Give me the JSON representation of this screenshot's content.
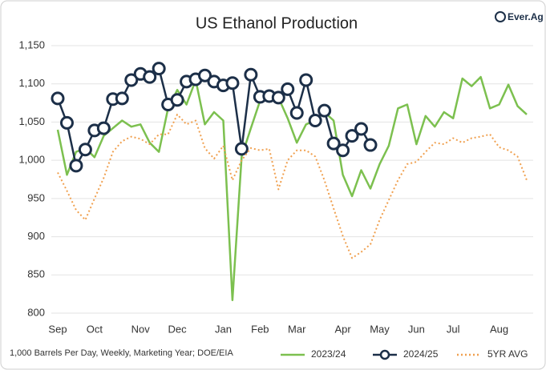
{
  "chart_data": {
    "type": "line",
    "title": "US Ethanol Production",
    "logo": "Ever.Ag",
    "note": "1,000 Barrels Per Day, Weekly, Marketing Year; DOE/EIA",
    "categories": [
      "Sep",
      null,
      null,
      null,
      "Oct",
      null,
      null,
      null,
      null,
      "Nov",
      null,
      null,
      null,
      "Dec",
      null,
      null,
      null,
      null,
      "Jan",
      null,
      null,
      null,
      "Feb",
      null,
      null,
      null,
      "Mar",
      null,
      null,
      null,
      null,
      "Apr",
      null,
      null,
      null,
      "May",
      null,
      null,
      null,
      "Jun",
      null,
      null,
      null,
      "Jul",
      null,
      null,
      null,
      null,
      "Aug",
      null,
      null,
      null
    ],
    "ylim": [
      800,
      1150
    ],
    "yticks": [
      800,
      850,
      900,
      950,
      {
        "value": 1000,
        "label": "1,000"
      },
      {
        "value": 1050,
        "label": "1,050"
      },
      {
        "value": 1100,
        "label": "1,100"
      },
      {
        "value": 1150,
        "label": "1,150"
      }
    ],
    "grid": true,
    "legend": "bottom",
    "series": [
      {
        "name": "2023/24",
        "color": "#7cc04f",
        "style": "solid",
        "values": [
          1040,
          981,
          1011,
          1016,
          1004,
          1032,
          1042,
          1052,
          1044,
          1047,
          1023,
          1011,
          1068,
          1092,
          1073,
          1105,
          1047,
          1063,
          1052,
          817,
          1005,
          1042,
          1078,
          1086,
          1082,
          1055,
          1023,
          1047,
          1052,
          1063,
          1052,
          981,
          953,
          987,
          963,
          995,
          1019,
          1068,
          1073,
          1021,
          1058,
          1044,
          1063,
          1055,
          1107,
          1097,
          1109,
          1068,
          1073,
          1099,
          1071,
          1060
        ]
      },
      {
        "name": "2024/25",
        "color": "#1c2f48",
        "style": "marker",
        "values": [
          1081,
          1049,
          993,
          1014,
          1039,
          1042,
          1080,
          1081,
          1105,
          1113,
          1109,
          1120,
          1073,
          1079,
          1103,
          1106,
          1111,
          1103,
          1098,
          1101,
          1015,
          1112,
          1083,
          1084,
          1082,
          1093,
          1062,
          1105,
          1052,
          1065,
          1022,
          1013,
          1032,
          1041,
          1020,
          null,
          null,
          null,
          null,
          null,
          null,
          null,
          null,
          null,
          null,
          null,
          null,
          null,
          null,
          null,
          null,
          null
        ]
      },
      {
        "name": "5YR AVG",
        "color": "#f0a04f",
        "style": "dotted",
        "values": [
          984,
          960,
          935,
          922,
          950,
          977,
          1011,
          1025,
          1031,
          1028,
          1021,
          1034,
          1034,
          1060,
          1047,
          1052,
          1016,
          1002,
          1019,
          974,
          1000,
          1016,
          1013,
          1015,
          962,
          1000,
          1013,
          1013,
          1005,
          974,
          937,
          901,
          872,
          880,
          890,
          922,
          948,
          974,
          995,
          998,
          1011,
          1023,
          1021,
          1029,
          1023,
          1029,
          1031,
          1034,
          1017,
          1013,
          1005,
          974
        ]
      }
    ]
  }
}
